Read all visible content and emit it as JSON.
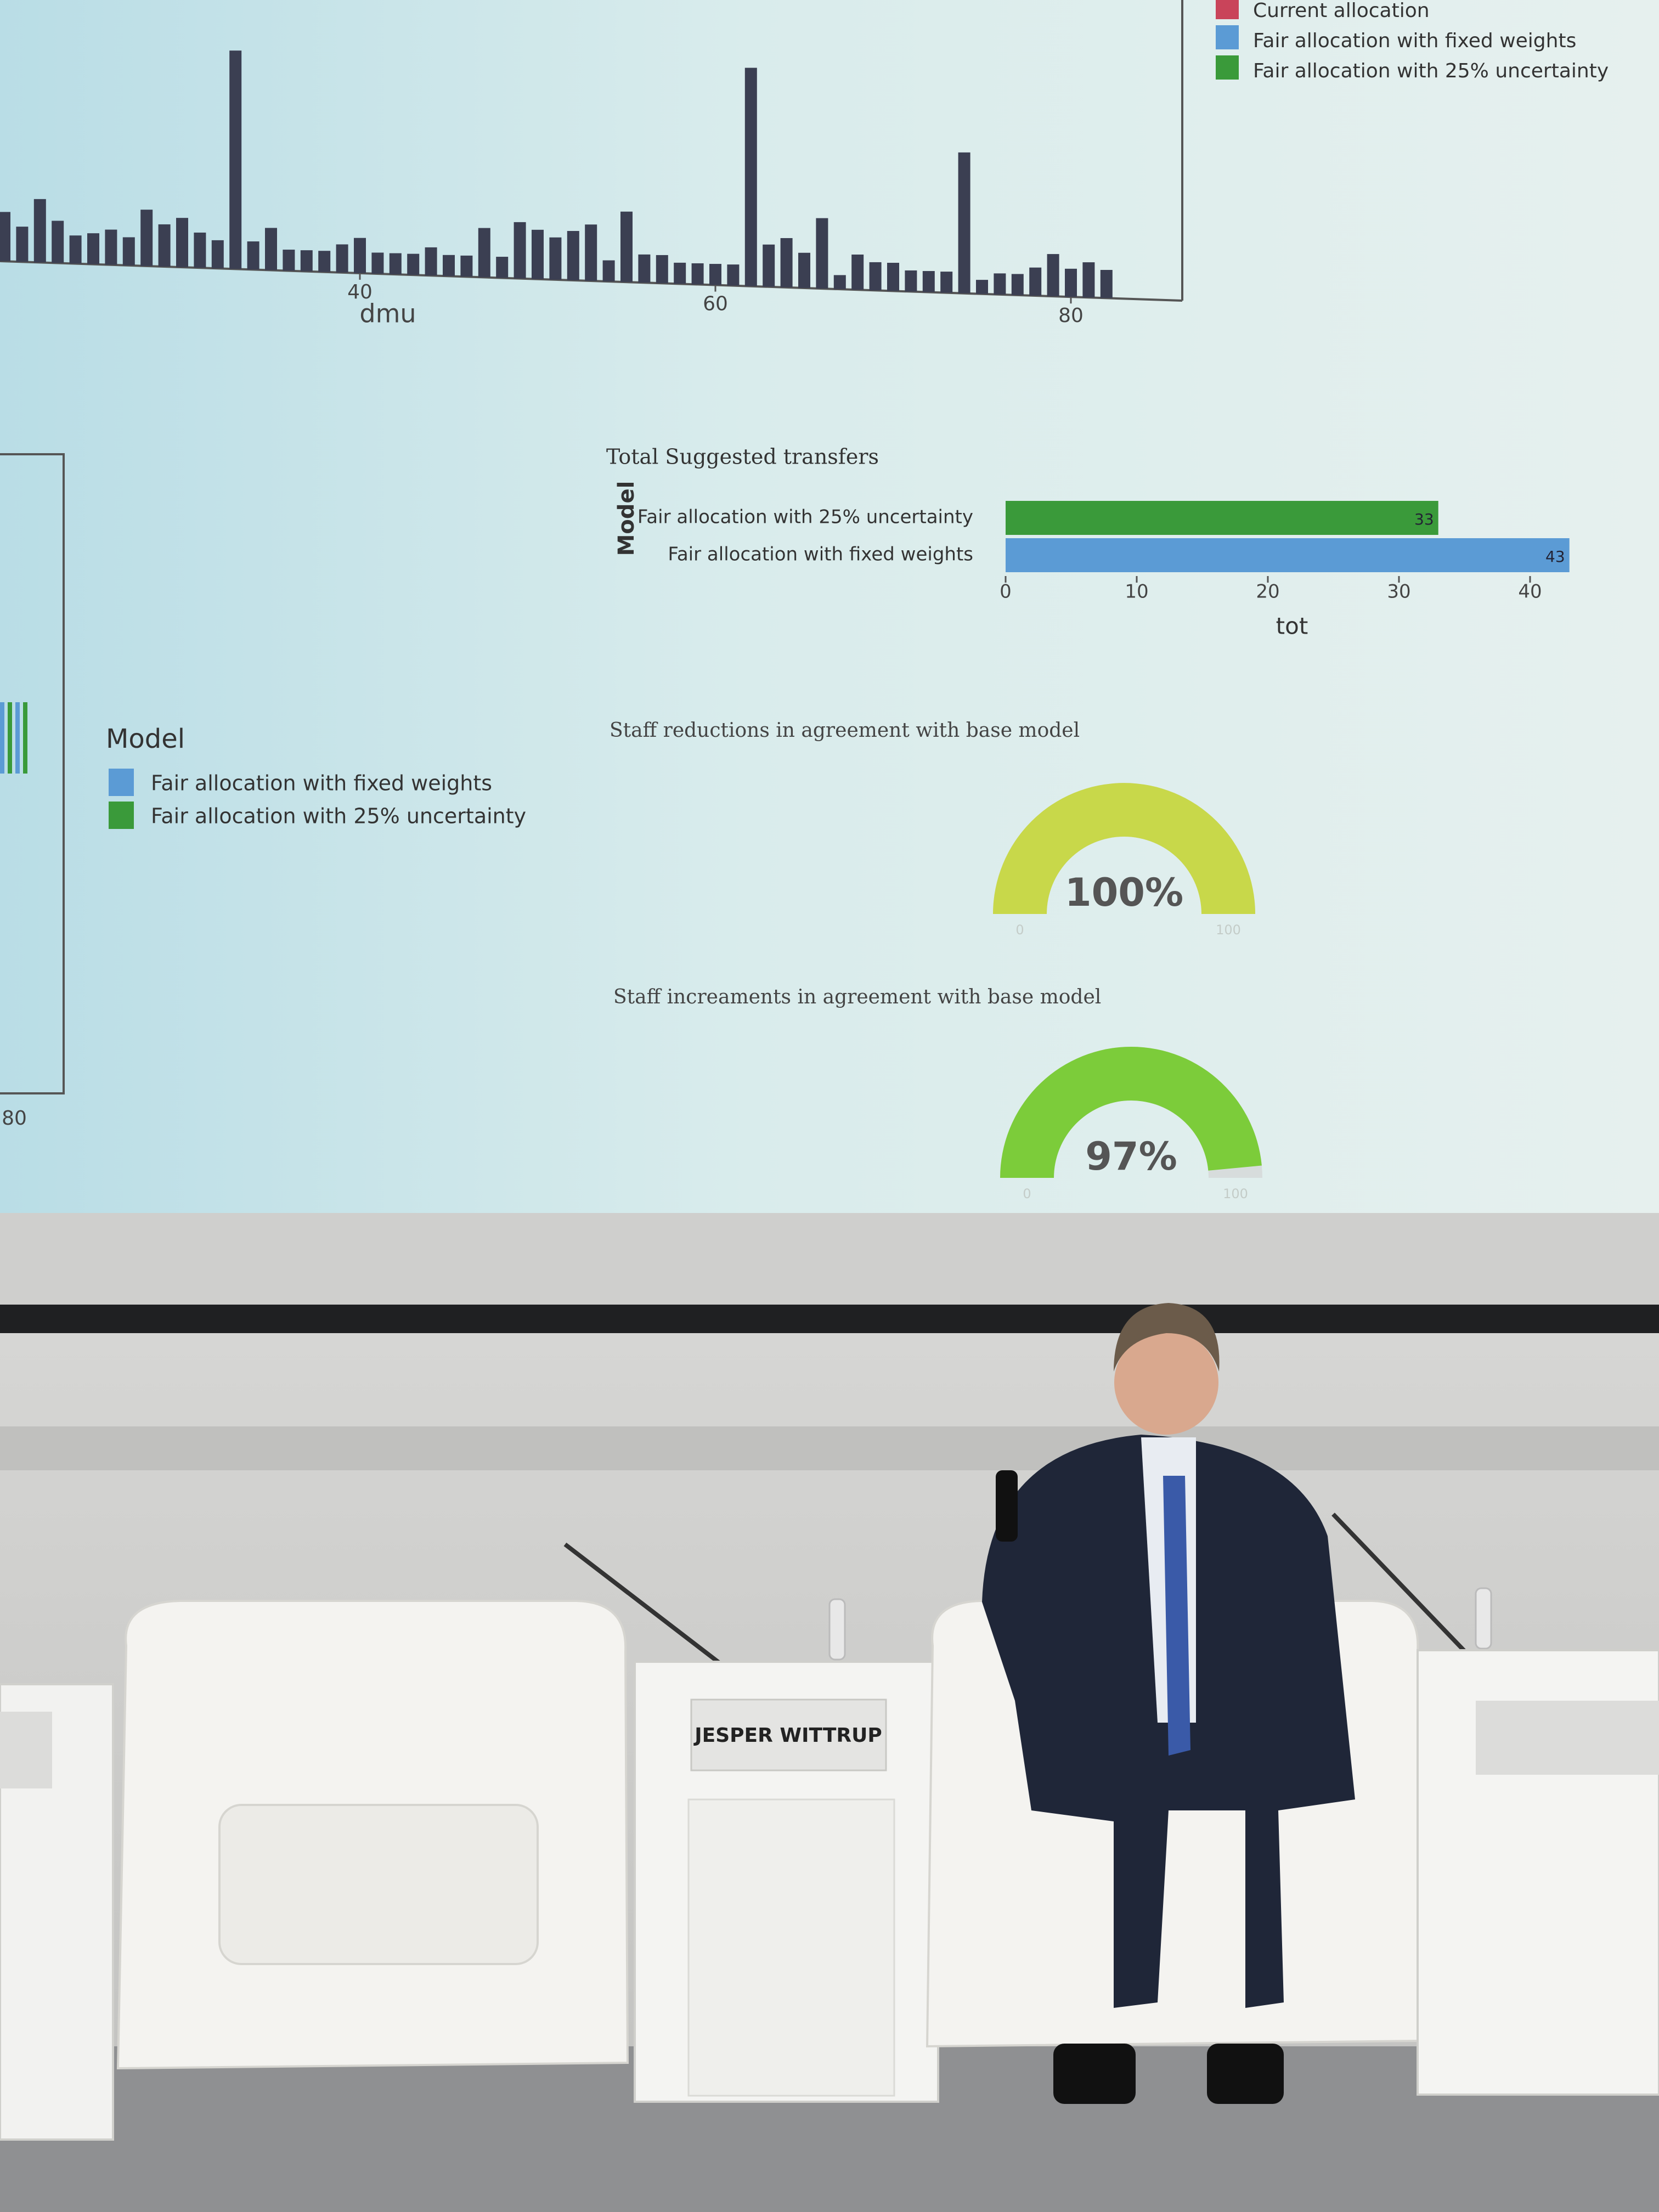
{
  "screen": {
    "top_chart": {
      "type": "bar",
      "legend": [
        {
          "name": "Current allocation",
          "color": "#c9445a"
        },
        {
          "name": "Fair allocation with fixed weights",
          "color": "#5b9bd5"
        },
        {
          "name": "Fair allocation with 25% uncertainty",
          "color": "#3a9a3a"
        }
      ],
      "x": [
        20,
        21,
        22,
        23,
        24,
        25,
        26,
        27,
        28,
        29,
        30,
        31,
        32,
        33,
        34,
        35,
        36,
        37,
        38,
        39,
        40,
        41,
        42,
        43,
        44,
        45,
        46,
        47,
        48,
        49,
        50,
        51,
        52,
        53,
        54,
        55,
        56,
        57,
        58,
        59,
        60,
        61,
        62,
        63,
        64,
        65,
        66,
        67,
        68,
        69,
        70,
        71,
        72,
        73,
        74,
        75,
        76,
        77,
        78,
        79,
        80,
        81,
        82
      ],
      "values": [
        35,
        25,
        45,
        30,
        20,
        22,
        25,
        20,
        40,
        30,
        35,
        25,
        20,
        155,
        20,
        30,
        15,
        15,
        15,
        20,
        25,
        15,
        15,
        15,
        20,
        15,
        15,
        35,
        15,
        40,
        35,
        30,
        35,
        40,
        15,
        50,
        20,
        20,
        15,
        15,
        15,
        15,
        155,
        30,
        35,
        25,
        50,
        10,
        25,
        20,
        20,
        15,
        15,
        15,
        100,
        10,
        15,
        15,
        20,
        30,
        20,
        25,
        20
      ],
      "bar_color": "#3b3f52",
      "ylim": [
        0,
        160
      ],
      "x_label": "dmu",
      "xticks": [
        40,
        60,
        80
      ]
    },
    "transfers": {
      "type": "bar",
      "title": "Total Suggested transfers",
      "y_label": "Model",
      "categories": [
        "Fair allocation with 25% uncertainty",
        "Fair allocation with fixed weights"
      ],
      "values": [
        33,
        43
      ],
      "colors": [
        "#3a9a3a",
        "#5b9bd5"
      ],
      "x_label": "tot",
      "xlim": [
        0,
        45
      ],
      "xticks": [
        0,
        10,
        20,
        30,
        40
      ]
    },
    "left_panel": {
      "xticks": [
        80
      ],
      "legend_title": "Model",
      "legend": [
        {
          "name": "Fair allocation with fixed weights",
          "color": "#5b9bd5"
        },
        {
          "name": "Fair allocation with 25% uncertainty",
          "color": "#3a9a3a"
        }
      ]
    },
    "gauges": [
      {
        "type": "gauge",
        "title": "Staff reductions in agreement with base model",
        "value": 100,
        "value_label": "100%",
        "min": 0,
        "max": 100,
        "color": "#c8d84a"
      },
      {
        "type": "gauge",
        "title": "Staff increaments in agreement with base model",
        "value": 97,
        "value_label": "97%",
        "min": 0,
        "max": 100,
        "color": "#7ccc3a"
      }
    ]
  },
  "stage": {
    "name_plate": "JESPER WITTRUP"
  }
}
